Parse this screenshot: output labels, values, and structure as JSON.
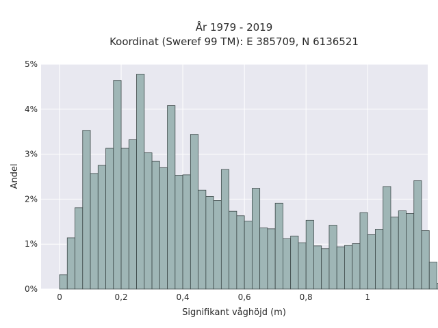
{
  "chart_data": {
    "type": "bar",
    "title_line1": "År 1979 - 2019",
    "title_line2": "Koordinat (Sweref 99 TM): E 385709, N 6136521",
    "xlabel": "Signifikant våghöjd (m)",
    "ylabel": "Andel",
    "bin_width": 0.025,
    "x_start": 0.0,
    "xlim": [
      -0.06,
      1.195
    ],
    "ylim": [
      0,
      5
    ],
    "x_ticks": [
      0,
      0.2,
      0.4,
      0.6,
      0.8,
      1.0
    ],
    "x_tick_labels": [
      "0",
      "0,2",
      "0,4",
      "0,6",
      "0,8",
      "1"
    ],
    "y_ticks": [
      0,
      1,
      2,
      3,
      4,
      5
    ],
    "y_tick_labels": [
      "0%",
      "1%",
      "2%",
      "3%",
      "4%",
      "5%"
    ],
    "values": [
      0.32,
      1.14,
      1.81,
      3.53,
      2.57,
      2.75,
      3.13,
      4.64,
      3.13,
      3.32,
      4.78,
      3.03,
      2.84,
      2.7,
      4.08,
      2.53,
      2.54,
      3.44,
      2.2,
      2.06,
      1.97,
      2.66,
      1.73,
      1.63,
      1.51,
      2.24,
      1.36,
      1.34,
      1.91,
      1.12,
      1.18,
      1.03,
      1.53,
      0.96,
      0.9,
      1.42,
      0.94,
      0.97,
      1.01,
      1.7,
      1.21,
      1.33,
      2.28,
      1.6,
      1.74,
      1.68,
      2.41,
      1.3,
      0.6,
      0.13
    ],
    "grid": true,
    "bar_color": "#9fb6b6",
    "bar_edge_color": "#3c4848",
    "plot_bg_color": "#e8e8f0",
    "grid_color": "#ffffff"
  }
}
